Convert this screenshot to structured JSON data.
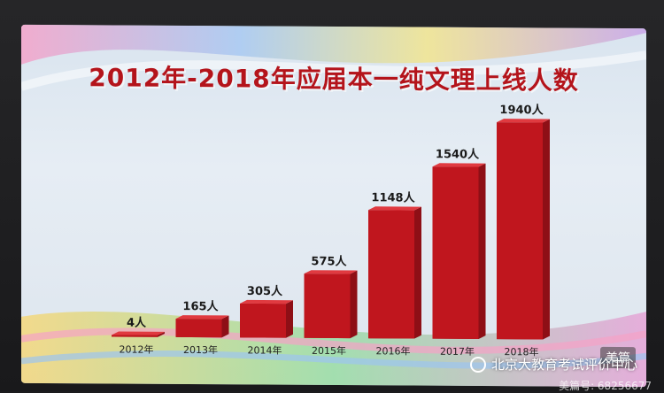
{
  "chart_data": {
    "type": "bar",
    "title": "2012年-2018年应届本一纯文理上线人数",
    "categories": [
      "2012年",
      "2013年",
      "2014年",
      "2015年",
      "2016年",
      "2017年",
      "2018年"
    ],
    "values": [
      4,
      165,
      305,
      575,
      1148,
      1540,
      1940
    ],
    "data_labels": [
      "4人",
      "165人",
      "305人",
      "575人",
      "1148人",
      "1540人",
      "1940人"
    ],
    "ylim": [
      0,
      1940
    ],
    "grid": false,
    "bar_color": "#c0161e"
  },
  "watermark": {
    "text": "北京大教育考试评价中心",
    "sub": "美篇号: 68256677",
    "app_badge": "美篇"
  }
}
